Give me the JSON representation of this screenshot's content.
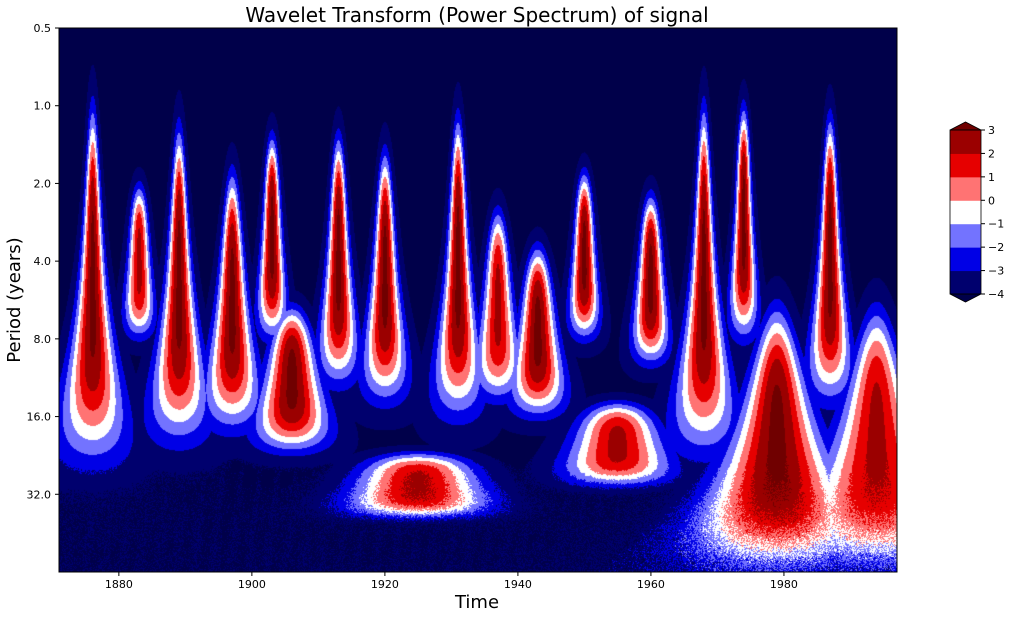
{
  "chart_data": {
    "type": "heatmap",
    "title": "Wavelet Transform (Power Spectrum) of signal",
    "xlabel": "Time",
    "ylabel": "Period (years)",
    "xlim": [
      1871,
      1997
    ],
    "x_ticks": [
      1880,
      1900,
      1920,
      1940,
      1960,
      1980
    ],
    "y_scale": "log2",
    "y_inverted": true,
    "y_range_period": [
      0.5,
      64
    ],
    "y_ticks": [
      0.5,
      1.0,
      2.0,
      4.0,
      8.0,
      16.0,
      32.0
    ],
    "y_tick_labels": [
      "0.5",
      "1.0",
      "2.0",
      "4.0",
      "8.0",
      "16.0",
      "32.0"
    ],
    "colorbar": {
      "levels": [
        -4,
        -3,
        -2,
        -1,
        0,
        1,
        2,
        3
      ],
      "level_labels": [
        "−4",
        "−3",
        "−2",
        "−1",
        "0",
        "1",
        "2",
        "3"
      ],
      "colors": [
        "#00006e",
        "#0000e6",
        "#7373ff",
        "#ffffff",
        "#ff7373",
        "#e60000",
        "#9b0000"
      ],
      "extend": "both",
      "under_color": "#00004a",
      "over_color": "#700000"
    },
    "contour_features": [
      {
        "time": 1876,
        "period_low": 1.0,
        "period_high": 24,
        "max_level": 3
      },
      {
        "time": 1883,
        "period_low": 2.0,
        "period_high": 8,
        "max_level": 2
      },
      {
        "time": 1889,
        "period_low": 1.2,
        "period_high": 20,
        "max_level": 3
      },
      {
        "time": 1897,
        "period_low": 1.8,
        "period_high": 18,
        "max_level": 3
      },
      {
        "time": 1903,
        "period_low": 1.3,
        "period_high": 8,
        "max_level": 3
      },
      {
        "time": 1906,
        "period_low": 6,
        "period_high": 22,
        "max_level": 3
      },
      {
        "time": 1913,
        "period_low": 1.3,
        "period_high": 12,
        "max_level": 3
      },
      {
        "time": 1920,
        "period_low": 1.5,
        "period_high": 14,
        "max_level": 3
      },
      {
        "time": 1925,
        "period_low": 22,
        "period_high": 40,
        "max_level": 2
      },
      {
        "time": 1931,
        "period_low": 1.1,
        "period_high": 16,
        "max_level": 3
      },
      {
        "time": 1937,
        "period_low": 2.5,
        "period_high": 14,
        "max_level": 2
      },
      {
        "time": 1943,
        "period_low": 3.5,
        "period_high": 16,
        "max_level": 3
      },
      {
        "time": 1950,
        "period_low": 1.8,
        "period_high": 8,
        "max_level": 3
      },
      {
        "time": 1955,
        "period_low": 14,
        "period_high": 30,
        "max_level": 2
      },
      {
        "time": 1960,
        "period_low": 2.2,
        "period_high": 10,
        "max_level": 3
      },
      {
        "time": 1968,
        "period_low": 1.0,
        "period_high": 22,
        "max_level": 3
      },
      {
        "time": 1974,
        "period_low": 1.0,
        "period_high": 8,
        "max_level": 3
      },
      {
        "time": 1979,
        "period_low": 6,
        "period_high": 64,
        "max_level": 3
      },
      {
        "time": 1987,
        "period_low": 1.1,
        "period_high": 14,
        "max_level": 3
      },
      {
        "time": 1994,
        "period_low": 6,
        "period_high": 64,
        "max_level": 2
      }
    ]
  }
}
